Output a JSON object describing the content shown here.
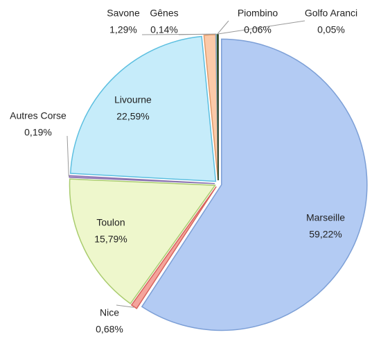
{
  "chart_data": {
    "type": "pie",
    "categories": [
      "Marseille",
      "Nice",
      "Toulon",
      "Autres Corse",
      "Livourne",
      "Savone",
      "Gênes",
      "Piombino",
      "Golfo Aranci"
    ],
    "values": [
      59.22,
      0.68,
      15.79,
      0.19,
      22.59,
      1.29,
      0.14,
      0.06,
      0.05
    ],
    "value_labels": [
      "59,22%",
      "0,68%",
      "15,79%",
      "0,19%",
      "22,59%",
      "1,29%",
      "0,14%",
      "0,06%",
      "0,05%"
    ],
    "colors": [
      "#b3cbf3",
      "#f4a49c",
      "#eef7cc",
      "#b9a4d6",
      "#c6ecfa",
      "#fbcaa9",
      "#c2d6f0",
      "#9cc96b",
      "#2f4f2f"
    ]
  }
}
